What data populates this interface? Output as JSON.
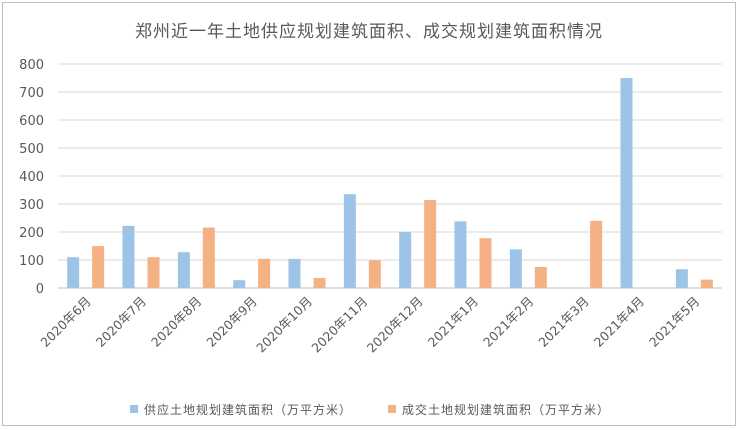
{
  "chart_data": {
    "type": "bar",
    "title": "郑州近一年土地供应规划建筑面积、成交规划建筑面积情况",
    "categories": [
      "2020年6月",
      "2020年7月",
      "2020年8月",
      "2020年9月",
      "2020年10月",
      "2020年11月",
      "2020年12月",
      "2021年1月",
      "2021年2月",
      "2021年3月",
      "2021年4月",
      "2021年5月"
    ],
    "series": [
      {
        "name": "供应土地规划建筑面积（万平方米）",
        "color": "#9dc3e6",
        "values": [
          110,
          222,
          128,
          28,
          104,
          335,
          200,
          238,
          138,
          0,
          750,
          67
        ]
      },
      {
        "name": "成交土地规划建筑面积（万平方米）",
        "color": "#f4b183",
        "values": [
          150,
          110,
          216,
          104,
          36,
          99,
          314,
          178,
          75,
          240,
          0,
          30
        ]
      }
    ],
    "ylim": [
      0,
      800
    ],
    "yticks": [
      0,
      100,
      200,
      300,
      400,
      500,
      600,
      700,
      800
    ],
    "grid": true,
    "legend": "bottom"
  }
}
